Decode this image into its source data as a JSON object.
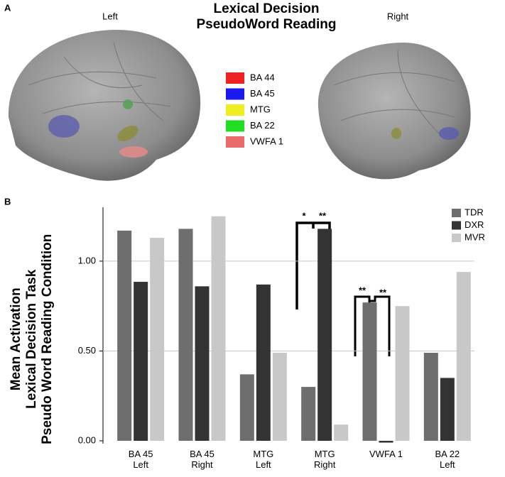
{
  "panel_a": {
    "label": "A",
    "title": "Lexical Decision\nPseudoWord Reading",
    "left_label": "Left",
    "right_label": "Right",
    "regions": [
      {
        "name": "BA 44",
        "color": "#ee2222"
      },
      {
        "name": "BA 45",
        "color": "#1a1aee"
      },
      {
        "name": "MTG",
        "color": "#eeee22"
      },
      {
        "name": "BA 22",
        "color": "#22dd22"
      },
      {
        "name": "VWFA 1",
        "color": "#e86a6a"
      }
    ]
  },
  "chart_data": {
    "type": "bar",
    "panel_label": "B",
    "y_label": "Mean Activation\nLexical Decision Task\nPseudo Word Reading Condition",
    "categories": [
      "BA 45\nLeft",
      "BA 45\nRight",
      "MTG\nLeft",
      "MTG\nRight",
      "VWFA 1",
      "BA 22\nLeft"
    ],
    "series": [
      {
        "name": "TDR",
        "color": "#6e6e6e",
        "values": [
          1.17,
          1.18,
          0.37,
          0.3,
          0.77,
          0.49
        ]
      },
      {
        "name": "DXR",
        "color": "#333333",
        "values": [
          0.885,
          0.86,
          0.87,
          1.18,
          -0.01,
          0.35
        ]
      },
      {
        "name": "MVR",
        "color": "#c8c8c8",
        "values": [
          1.13,
          1.25,
          0.49,
          0.09,
          0.75,
          0.94
        ]
      }
    ],
    "ylim": [
      0,
      1.3
    ],
    "yticks": [
      {
        "value": 0,
        "label": "0.00"
      },
      {
        "value": 0.5,
        "label": "0.50"
      },
      {
        "value": 1,
        "label": "1.00"
      }
    ],
    "grid": true,
    "annotations": [
      "*",
      "**",
      "**",
      "**"
    ]
  }
}
